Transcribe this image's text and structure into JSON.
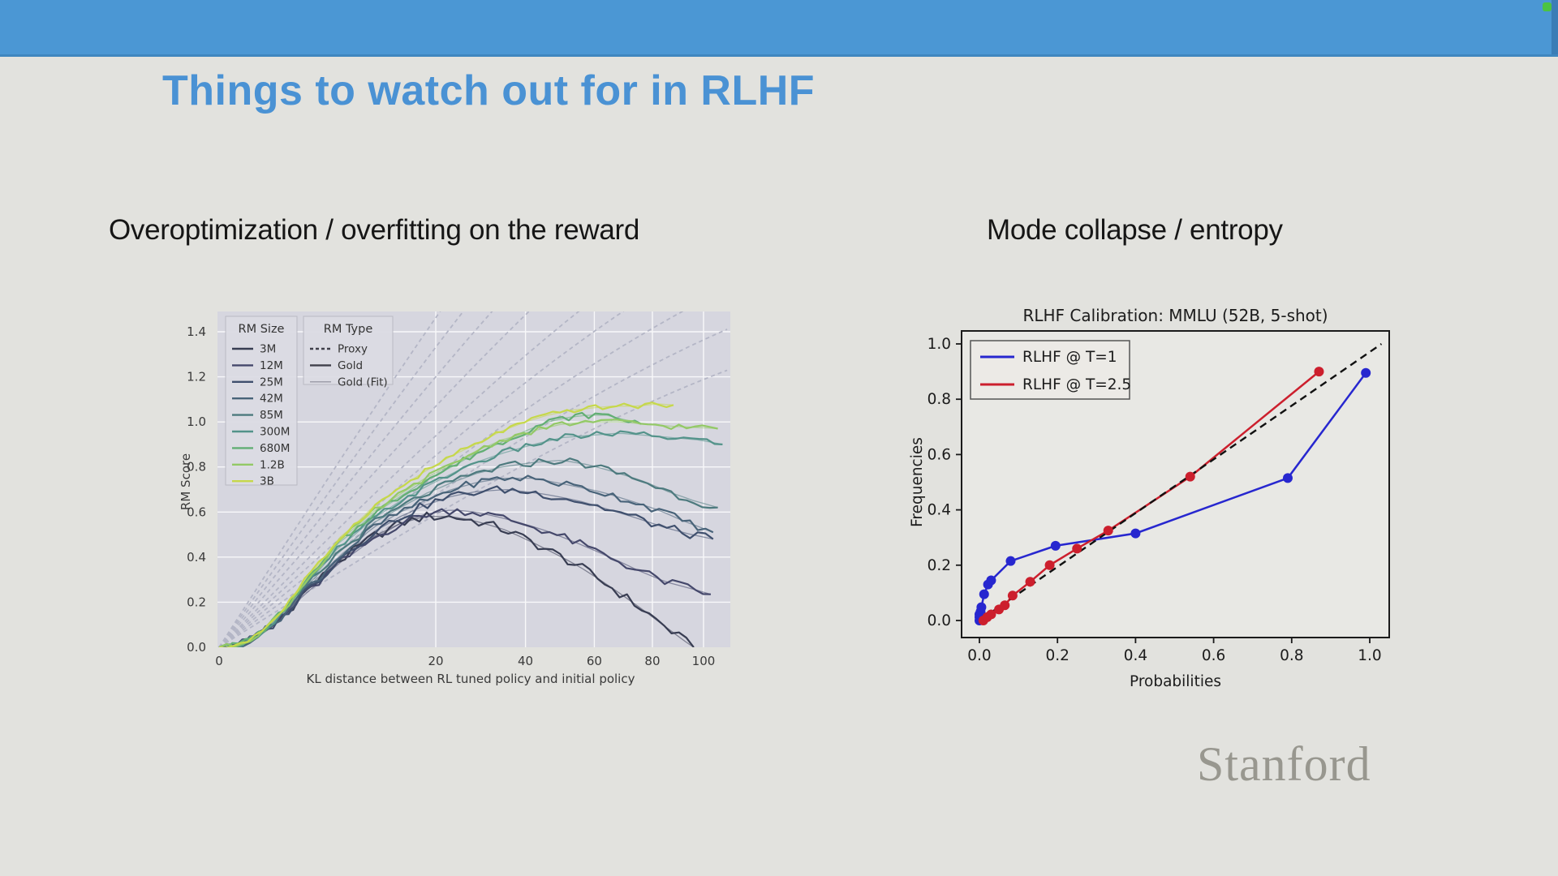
{
  "window": {
    "topbar_color": "#4b97d4",
    "record_dot_color": "#4cc341"
  },
  "slide": {
    "title": "Things to watch out for in RLHF",
    "title_color": "#4a92d4",
    "background_color": "#e2e2de",
    "left_heading": "Overoptimization / overfitting on the reward",
    "right_heading": "Mode collapse / entropy",
    "footer_logo": "Stanford"
  },
  "chart_data": [
    {
      "type": "line",
      "title": "",
      "xlabel": "KL distance between RL tuned policy and initial policy",
      "ylabel": "RM Score",
      "x_scale": "sqrt",
      "xlim": [
        0,
        111
      ],
      "ylim": [
        0,
        1.49
      ],
      "x_ticks": [
        0,
        20,
        40,
        60,
        80,
        100
      ],
      "y_ticks": [
        0.0,
        0.2,
        0.4,
        0.6,
        0.8,
        1.0,
        1.2,
        1.4
      ],
      "grid": true,
      "plot_bg": "#d6d6df",
      "grid_color": "#ffffff",
      "proxy_color": "#b4b6c6",
      "legend_size_title": "RM Size",
      "legend_type_title": "RM Type",
      "legend_type_entries": [
        {
          "label": "Proxy",
          "style": "dashed",
          "color": "#3f3f4a"
        },
        {
          "label": "Gold",
          "style": "solid",
          "color": "#3f3f4a"
        },
        {
          "label": "Gold (Fit)",
          "style": "thin",
          "color": "#8a8a96"
        }
      ],
      "series": [
        {
          "name": "3M",
          "color": "#383d52",
          "proxy_coef": 0.135,
          "jitter": 0.022,
          "gold": [
            [
              0,
              0
            ],
            [
              3,
              0.24
            ],
            [
              6,
              0.38
            ],
            [
              10,
              0.49
            ],
            [
              14,
              0.55
            ],
            [
              18,
              0.58
            ],
            [
              23,
              0.58
            ],
            [
              28,
              0.56
            ],
            [
              35,
              0.52
            ],
            [
              45,
              0.44
            ],
            [
              55,
              0.36
            ],
            [
              65,
              0.27
            ],
            [
              75,
              0.18
            ],
            [
              85,
              0.09
            ],
            [
              92,
              0.03
            ],
            [
              96,
              0.0
            ]
          ]
        },
        {
          "name": "12M",
          "color": "#45486b",
          "proxy_coef": 0.155,
          "jitter": 0.02,
          "gold": [
            [
              0,
              0
            ],
            [
              3,
              0.23
            ],
            [
              6,
              0.37
            ],
            [
              10,
              0.48
            ],
            [
              14,
              0.55
            ],
            [
              18,
              0.59
            ],
            [
              23,
              0.61
            ],
            [
              28,
              0.6
            ],
            [
              35,
              0.57
            ],
            [
              45,
              0.52
            ],
            [
              55,
              0.46
            ],
            [
              65,
              0.4
            ],
            [
              75,
              0.34
            ],
            [
              85,
              0.29
            ],
            [
              95,
              0.26
            ],
            [
              103,
              0.235
            ]
          ]
        },
        {
          "name": "25M",
          "color": "#3f4f6d",
          "proxy_coef": 0.175,
          "jitter": 0.02,
          "gold": [
            [
              0,
              0
            ],
            [
              3,
              0.24
            ],
            [
              6,
              0.39
            ],
            [
              10,
              0.51
            ],
            [
              14,
              0.58
            ],
            [
              18,
              0.63
            ],
            [
              23,
              0.67
            ],
            [
              28,
              0.69
            ],
            [
              35,
              0.7
            ],
            [
              45,
              0.68
            ],
            [
              55,
              0.65
            ],
            [
              65,
              0.61
            ],
            [
              75,
              0.57
            ],
            [
              85,
              0.53
            ],
            [
              95,
              0.5
            ],
            [
              104,
              0.48
            ]
          ]
        },
        {
          "name": "42M",
          "color": "#486379",
          "proxy_coef": 0.195,
          "jitter": 0.018,
          "gold": [
            [
              0,
              0
            ],
            [
              3,
              0.25
            ],
            [
              6,
              0.4
            ],
            [
              10,
              0.53
            ],
            [
              14,
              0.6
            ],
            [
              18,
              0.65
            ],
            [
              23,
              0.7
            ],
            [
              28,
              0.73
            ],
            [
              34,
              0.75
            ],
            [
              42,
              0.75
            ],
            [
              52,
              0.72
            ],
            [
              62,
              0.69
            ],
            [
              72,
              0.65
            ],
            [
              82,
              0.61
            ],
            [
              92,
              0.56
            ],
            [
              104,
              0.51
            ]
          ]
        },
        {
          "name": "85M",
          "color": "#4d7a7e",
          "proxy_coef": 0.215,
          "jitter": 0.018,
          "gold": [
            [
              0,
              0
            ],
            [
              3,
              0.26
            ],
            [
              6,
              0.42
            ],
            [
              10,
              0.55
            ],
            [
              14,
              0.62
            ],
            [
              18,
              0.68
            ],
            [
              23,
              0.73
            ],
            [
              28,
              0.77
            ],
            [
              34,
              0.8
            ],
            [
              42,
              0.82
            ],
            [
              50,
              0.83
            ],
            [
              58,
              0.81
            ],
            [
              66,
              0.78
            ],
            [
              76,
              0.74
            ],
            [
              86,
              0.69
            ],
            [
              96,
              0.65
            ],
            [
              106,
              0.62
            ]
          ]
        },
        {
          "name": "300M",
          "color": "#53938a",
          "proxy_coef": 0.245,
          "jitter": 0.015,
          "gold": [
            [
              0,
              0
            ],
            [
              3,
              0.27
            ],
            [
              6,
              0.44
            ],
            [
              10,
              0.57
            ],
            [
              14,
              0.65
            ],
            [
              18,
              0.71
            ],
            [
              23,
              0.77
            ],
            [
              28,
              0.82
            ],
            [
              34,
              0.86
            ],
            [
              42,
              0.9
            ],
            [
              50,
              0.93
            ],
            [
              58,
              0.94
            ],
            [
              68,
              0.95
            ],
            [
              78,
              0.94
            ],
            [
              88,
              0.93
            ],
            [
              98,
              0.92
            ],
            [
              108,
              0.9
            ]
          ]
        },
        {
          "name": "680M",
          "color": "#62ae74",
          "proxy_coef": 0.275,
          "jitter": 0.015,
          "gold": [
            [
              0,
              0
            ],
            [
              3,
              0.28
            ],
            [
              6,
              0.46
            ],
            [
              10,
              0.59
            ],
            [
              14,
              0.67
            ],
            [
              18,
              0.74
            ],
            [
              23,
              0.8
            ],
            [
              28,
              0.86
            ],
            [
              34,
              0.91
            ],
            [
              40,
              0.96
            ],
            [
              46,
              1.0
            ],
            [
              52,
              1.02
            ],
            [
              58,
              1.03
            ],
            [
              64,
              1.03
            ],
            [
              70,
              1.01
            ],
            [
              76,
              0.99
            ]
          ]
        },
        {
          "name": "1.2B",
          "color": "#93c966",
          "proxy_coef": 0.305,
          "jitter": 0.013,
          "gold": [
            [
              0,
              0
            ],
            [
              3,
              0.28
            ],
            [
              6,
              0.47
            ],
            [
              10,
              0.6
            ],
            [
              14,
              0.68
            ],
            [
              18,
              0.75
            ],
            [
              23,
              0.81
            ],
            [
              28,
              0.87
            ],
            [
              34,
              0.92
            ],
            [
              42,
              0.96
            ],
            [
              50,
              0.99
            ],
            [
              58,
              1.0
            ],
            [
              68,
              1.0
            ],
            [
              78,
              0.99
            ],
            [
              88,
              0.98
            ],
            [
              98,
              0.975
            ],
            [
              106,
              0.97
            ]
          ]
        },
        {
          "name": "3B",
          "color": "#c6d84a",
          "proxy_coef": 0.335,
          "jitter": 0.012,
          "gold": [
            [
              0,
              0
            ],
            [
              3,
              0.29
            ],
            [
              6,
              0.48
            ],
            [
              10,
              0.62
            ],
            [
              14,
              0.71
            ],
            [
              18,
              0.78
            ],
            [
              23,
              0.85
            ],
            [
              28,
              0.9
            ],
            [
              34,
              0.96
            ],
            [
              40,
              1.0
            ],
            [
              46,
              1.03
            ],
            [
              52,
              1.05
            ],
            [
              58,
              1.06
            ],
            [
              66,
              1.07
            ],
            [
              74,
              1.07
            ],
            [
              82,
              1.08
            ],
            [
              88,
              1.075
            ]
          ]
        }
      ]
    },
    {
      "type": "line",
      "title": "RLHF  Calibration: MMLU (52B, 5-shot)",
      "xlabel": "Probabilities",
      "ylabel": "Frequencies",
      "xlim": [
        -0.05,
        1.05
      ],
      "ylim": [
        -0.05,
        1.05
      ],
      "x_ticks": [
        0.0,
        0.2,
        0.4,
        0.6,
        0.8,
        1.0
      ],
      "y_ticks": [
        0.0,
        0.2,
        0.4,
        0.6,
        0.8,
        1.0
      ],
      "grid": false,
      "plot_bg": "#e8e8e4",
      "frame_color": "#1b1b1b",
      "identity_line": {
        "style": "dashed",
        "color": "#111111",
        "from": [
          0.0,
          0.0
        ],
        "to": [
          1.03,
          1.0
        ]
      },
      "legend_position": "upper left",
      "series": [
        {
          "name": "RLHF @ T=1",
          "color": "#2727cf",
          "marker": "circle",
          "points": [
            [
              0.0,
              0.0
            ],
            [
              0.0,
              0.012
            ],
            [
              0.0,
              0.022
            ],
            [
              0.003,
              0.032
            ],
            [
              0.005,
              0.048
            ],
            [
              0.012,
              0.095
            ],
            [
              0.022,
              0.13
            ],
            [
              0.03,
              0.145
            ],
            [
              0.08,
              0.215
            ],
            [
              0.195,
              0.27
            ],
            [
              0.4,
              0.315
            ],
            [
              0.79,
              0.515
            ],
            [
              0.99,
              0.895
            ]
          ]
        },
        {
          "name": "RLHF @ T=2.5",
          "color": "#cc1f2d",
          "marker": "circle",
          "points": [
            [
              0.01,
              0.0
            ],
            [
              0.02,
              0.012
            ],
            [
              0.03,
              0.022
            ],
            [
              0.05,
              0.04
            ],
            [
              0.065,
              0.055
            ],
            [
              0.085,
              0.09
            ],
            [
              0.13,
              0.14
            ],
            [
              0.18,
              0.2
            ],
            [
              0.25,
              0.26
            ],
            [
              0.33,
              0.325
            ],
            [
              0.54,
              0.52
            ],
            [
              0.87,
              0.9
            ]
          ]
        }
      ]
    }
  ]
}
